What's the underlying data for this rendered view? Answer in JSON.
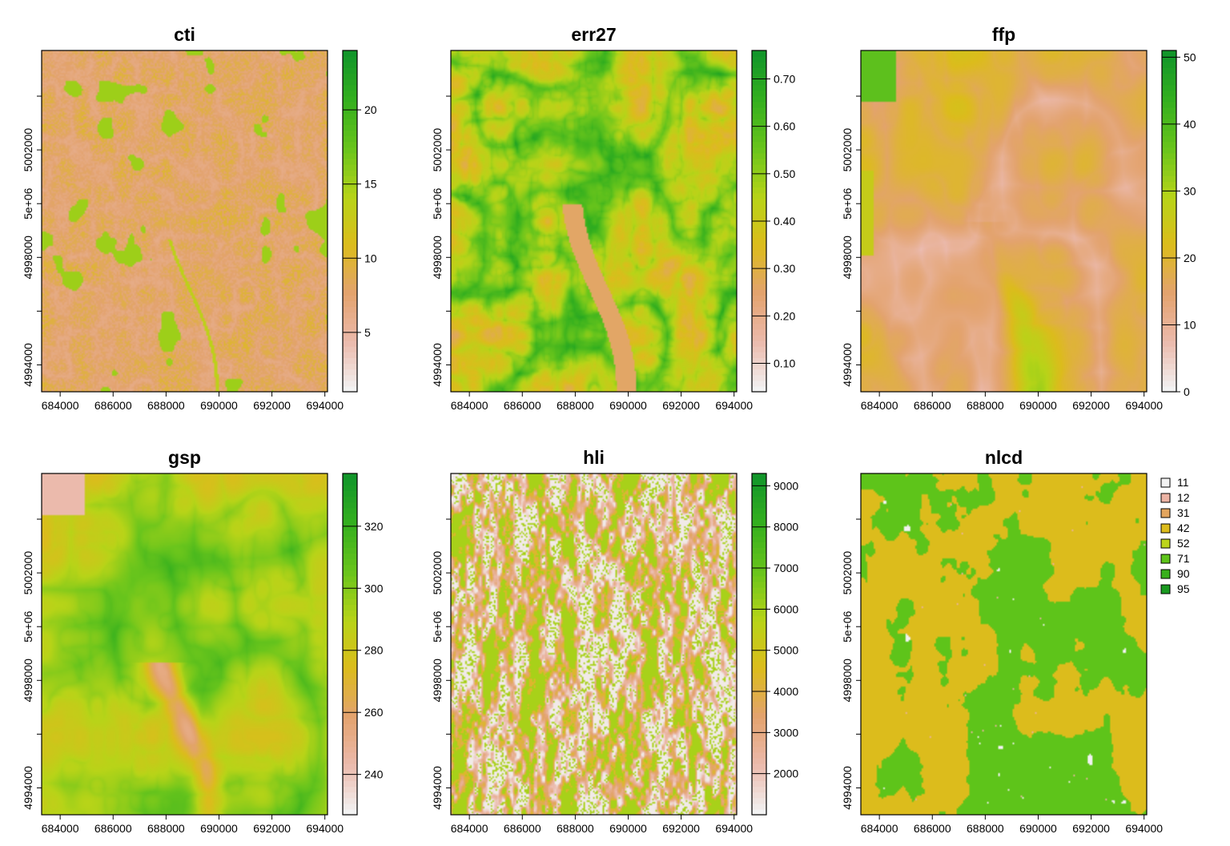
{
  "chart_data": [
    {
      "type": "heatmap",
      "title": "cti",
      "x_ticks": [
        "684000",
        "686000",
        "688000",
        "690000",
        "692000",
        "694000"
      ],
      "y_ticks": [
        "4994000",
        "4998000",
        "5e+06",
        "5002000"
      ],
      "legend": {
        "kind": "continuous",
        "min": 1,
        "max": 24,
        "ticks": [
          "5",
          "10",
          "15",
          "20"
        ],
        "tick_values": [
          5,
          10,
          15,
          20
        ]
      },
      "pattern": "cti"
    },
    {
      "type": "heatmap",
      "title": "err27",
      "x_ticks": [
        "684000",
        "686000",
        "688000",
        "690000",
        "692000",
        "694000"
      ],
      "y_ticks": [
        "4994000",
        "4998000",
        "5e+06",
        "5002000"
      ],
      "legend": {
        "kind": "continuous",
        "min": 0.04,
        "max": 0.76,
        "ticks": [
          "0.10",
          "0.20",
          "0.30",
          "0.40",
          "0.50",
          "0.60",
          "0.70"
        ],
        "tick_values": [
          0.1,
          0.2,
          0.3,
          0.4,
          0.5,
          0.6,
          0.7
        ]
      },
      "pattern": "err27"
    },
    {
      "type": "heatmap",
      "title": "ffp",
      "x_ticks": [
        "684000",
        "686000",
        "688000",
        "690000",
        "692000",
        "694000"
      ],
      "y_ticks": [
        "4994000",
        "4998000",
        "5e+06",
        "5002000"
      ],
      "legend": {
        "kind": "continuous",
        "min": 0,
        "max": 51,
        "ticks": [
          "0",
          "10",
          "20",
          "30",
          "40",
          "50"
        ],
        "tick_values": [
          0,
          10,
          20,
          30,
          40,
          50
        ]
      },
      "pattern": "ffp"
    },
    {
      "type": "heatmap",
      "title": "gsp",
      "x_ticks": [
        "684000",
        "686000",
        "688000",
        "690000",
        "692000",
        "694000"
      ],
      "y_ticks": [
        "4994000",
        "4998000",
        "5e+06",
        "5002000"
      ],
      "legend": {
        "kind": "continuous",
        "min": 227,
        "max": 337,
        "ticks": [
          "240",
          "260",
          "280",
          "300",
          "320"
        ],
        "tick_values": [
          240,
          260,
          280,
          300,
          320
        ]
      },
      "pattern": "gsp"
    },
    {
      "type": "heatmap",
      "title": "hli",
      "x_ticks": [
        "684000",
        "686000",
        "688000",
        "690000",
        "692000",
        "694000"
      ],
      "y_ticks": [
        "4994000",
        "4998000",
        "5e+06",
        "5002000"
      ],
      "legend": {
        "kind": "continuous",
        "min": 1000,
        "max": 9300,
        "ticks": [
          "2000",
          "3000",
          "4000",
          "5000",
          "6000",
          "7000",
          "8000",
          "9000"
        ],
        "tick_values": [
          2000,
          3000,
          4000,
          5000,
          6000,
          7000,
          8000,
          9000
        ]
      },
      "pattern": "hli"
    },
    {
      "type": "heatmap",
      "title": "nlcd",
      "x_ticks": [
        "684000",
        "686000",
        "688000",
        "690000",
        "692000",
        "694000"
      ],
      "y_ticks": [
        "4994000",
        "4998000",
        "5e+06",
        "5002000"
      ],
      "legend": {
        "kind": "categorical",
        "classes": [
          "11",
          "12",
          "31",
          "42",
          "52",
          "71",
          "90",
          "95"
        ],
        "colors": [
          "#f2f2f2",
          "#ecb3a4",
          "#e3a55e",
          "#dcbc1c",
          "#bcd41c",
          "#5ec41a",
          "#38b01c",
          "#1a9a20"
        ]
      },
      "pattern": "nlcd"
    }
  ],
  "colormap": [
    "#f2f2f2",
    "#ebb9ab",
    "#e3a36e",
    "#dcbc1c",
    "#b8d418",
    "#6ac51c",
    "#35b01e",
    "#12962a"
  ]
}
